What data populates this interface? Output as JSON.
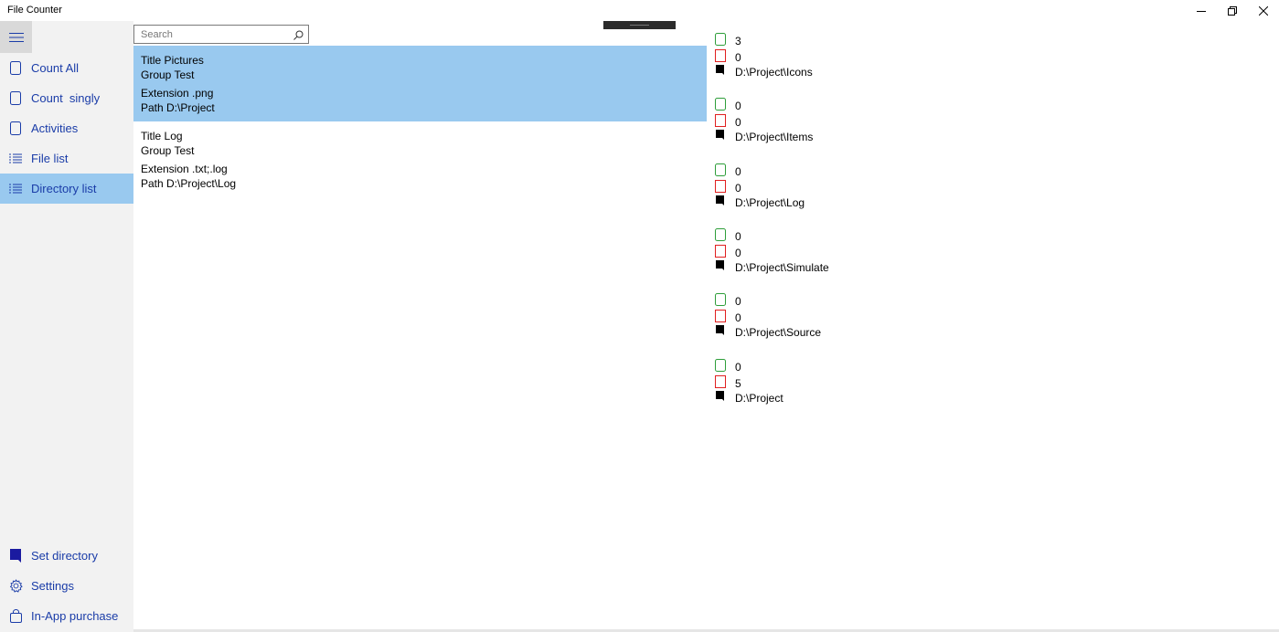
{
  "window": {
    "title": "File Counter"
  },
  "search": {
    "placeholder": "Search"
  },
  "sidebar": {
    "items": [
      {
        "label": "Count All"
      },
      {
        "label": "Count  singly"
      },
      {
        "label": "Activities"
      },
      {
        "label": "File list"
      },
      {
        "label": "Directory list"
      }
    ],
    "bottom_items": [
      {
        "label": "Set directory"
      },
      {
        "label": "Settings"
      },
      {
        "label": "In-App purchase"
      }
    ]
  },
  "list": [
    {
      "title": "Title Pictures",
      "group": "Group Test",
      "extension": "Extension .png",
      "path": "Path D:\\Project",
      "selected": true
    },
    {
      "title": "Title Log",
      "group": "Group Test",
      "extension": "Extension .txt;.log",
      "path": "Path D:\\Project\\Log",
      "selected": false
    }
  ],
  "directories": [
    {
      "green": "3",
      "red": "0",
      "path": "D:\\Project\\Icons"
    },
    {
      "green": "0",
      "red": "0",
      "path": "D:\\Project\\Items"
    },
    {
      "green": "0",
      "red": "0",
      "path": "D:\\Project\\Log"
    },
    {
      "green": "0",
      "red": "0",
      "path": "D:\\Project\\Simulate"
    },
    {
      "green": "0",
      "red": "0",
      "path": "D:\\Project\\Source"
    },
    {
      "green": "0",
      "red": "5",
      "path": "D:\\Project"
    }
  ],
  "colors": {
    "accent": "#99c9ef",
    "nav_text": "#1a3ca8",
    "green": "#2e9e3a",
    "red": "#e02020"
  },
  "icons": {
    "hamburger": "hamburger-icon",
    "count_all": "file-outline-icon",
    "count_singly": "file-outline-icon",
    "activities": "file-outline-icon",
    "file_list": "list-icon",
    "directory_list": "list-icon",
    "set_directory": "file-filled-icon",
    "settings": "gear-icon",
    "in_app_purchase": "shopping-bag-icon"
  }
}
